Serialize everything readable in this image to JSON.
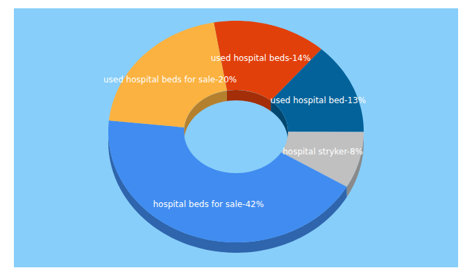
{
  "chart_data": {
    "type": "pie",
    "categories": [
      "used hospital beds",
      "used hospital bed",
      "hospital stryker",
      "hospital beds for sale",
      "used hospital beds for sale"
    ],
    "values": [
      14,
      13,
      8,
      42,
      20
    ],
    "value_labels": [
      "used hospital beds-14%",
      "used hospital bed-13%",
      "hospital stryker-8%",
      "hospital beds for sale-42%",
      "used hospital beds for sale-20%"
    ],
    "colors": [
      "#e2400a",
      "#03629a",
      "#c0c0c0",
      "#418cf0",
      "#fbb240"
    ],
    "data_labels": true
  }
}
